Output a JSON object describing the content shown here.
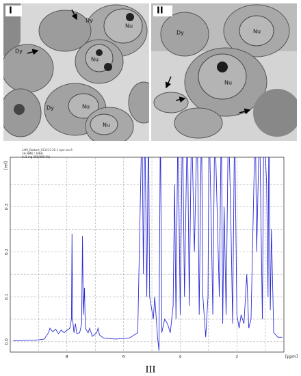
{
  "panels": [
    {
      "label": "I",
      "annotations": [
        "Dy",
        "Nu",
        "Dy",
        "Nu",
        "Dy",
        "Nu",
        "Nu"
      ]
    },
    {
      "label": "II",
      "annotations": [
        "Dy",
        "Nu",
        "Nu"
      ]
    }
  ],
  "chart_data": {
    "type": "line",
    "header": [
      "1AM_Diebert_031212 20 1 /opt nmr1",
      "1H NMR / 1MHz",
      "In 5 mg 400/300 (%)"
    ],
    "y_label": "[rel]",
    "x_label": "[ppm]",
    "color": "#2a2ad6",
    "xlim": [
      10.0,
      0.34
    ],
    "ylim": [
      -0.023,
      0.41
    ],
    "xticks": [
      8,
      6,
      4,
      2
    ],
    "minor_xticks": [
      9,
      7,
      5,
      3,
      1
    ],
    "yticks": [
      {
        "value": 0,
        "label": "0.0"
      },
      {
        "value": 0.1,
        "label": "0.1"
      },
      {
        "value": 0.2,
        "label": "0.2"
      },
      {
        "value": 0.3,
        "label": "0.3"
      }
    ],
    "minor_yticks": [
      0.05,
      0.15,
      0.25,
      0.35
    ],
    "grid": true,
    "x": [
      9.9,
      9.5,
      9.0,
      8.8,
      8.65,
      8.6,
      8.5,
      8.4,
      8.3,
      8.2,
      8.1,
      8.0,
      7.9,
      7.84,
      7.82,
      7.8,
      7.75,
      7.7,
      7.65,
      7.55,
      7.48,
      7.45,
      7.42,
      7.38,
      7.35,
      7.25,
      7.2,
      7.1,
      6.95,
      6.9,
      6.85,
      6.7,
      6.3,
      5.8,
      5.5,
      5.35,
      5.3,
      5.25,
      5.18,
      5.12,
      5.08,
      4.95,
      4.9,
      4.8,
      4.75,
      4.7,
      4.65,
      4.55,
      4.45,
      4.35,
      4.25,
      4.2,
      4.15,
      4.08,
      4.0,
      3.92,
      3.85,
      3.75,
      3.68,
      3.6,
      3.5,
      3.4,
      3.33,
      3.25,
      3.2,
      3.1,
      3.02,
      2.98,
      2.9,
      2.85,
      2.78,
      2.7,
      2.62,
      2.55,
      2.5,
      2.45,
      2.38,
      2.3,
      2.22,
      2.15,
      2.08,
      2.0,
      1.92,
      1.85,
      1.75,
      1.65,
      1.58,
      1.5,
      1.35,
      1.3,
      1.2,
      1.1,
      1.05,
      0.95,
      0.9,
      0.87,
      0.82,
      0.78,
      0.7,
      0.55,
      0.4
    ],
    "y": [
      0.002,
      0.003,
      0.004,
      0.006,
      0.02,
      0.03,
      0.022,
      0.028,
      0.018,
      0.026,
      0.02,
      0.025,
      0.03,
      0.05,
      0.24,
      0.05,
      0.02,
      0.04,
      0.018,
      0.02,
      0.04,
      0.235,
      0.06,
      0.12,
      0.03,
      0.02,
      0.03,
      0.012,
      0.02,
      0.03,
      0.015,
      0.008,
      0.006,
      0.008,
      0.02,
      0.5,
      0.15,
      0.5,
      0.1,
      0.5,
      0.1,
      0.05,
      0.1,
      0.01,
      -0.02,
      0.5,
      0.02,
      0.05,
      0.04,
      0.02,
      0.08,
      0.35,
      0.05,
      0.5,
      0.06,
      0.5,
      0.1,
      0.5,
      0.08,
      0.5,
      0.2,
      0.5,
      0.06,
      0.5,
      0.1,
      0.01,
      0.1,
      0.5,
      0.25,
      0.06,
      0.5,
      0.3,
      0.1,
      0.5,
      0.04,
      0.3,
      0.06,
      0.5,
      0.3,
      0.04,
      0.5,
      0.06,
      0.03,
      0.06,
      0.04,
      0.15,
      0.03,
      0.05,
      0.5,
      0.2,
      0.5,
      0.05,
      0.5,
      0.35,
      0.1,
      0.5,
      0.07,
      0.25,
      0.02,
      0.01,
      0.01
    ]
  },
  "caption": "III"
}
